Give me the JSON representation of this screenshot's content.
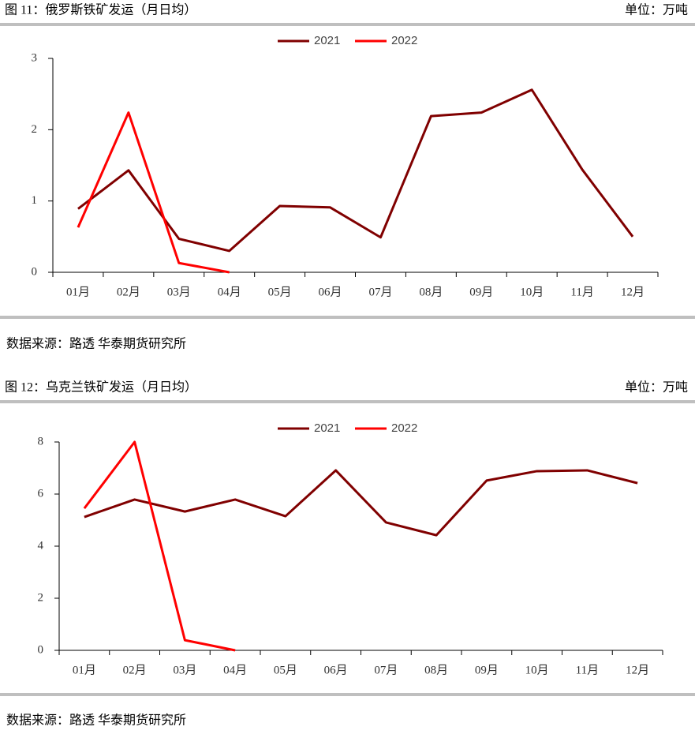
{
  "chart_data": [
    {
      "type": "line",
      "title": "图 11：俄罗斯铁矿发运（月日均）",
      "unit": "单位：万吨",
      "source": "数据来源：路透 华泰期货研究所",
      "categories": [
        "01月",
        "02月",
        "03月",
        "04月",
        "05月",
        "06月",
        "07月",
        "08月",
        "09月",
        "10月",
        "11月",
        "12月"
      ],
      "series": [
        {
          "name": "2021",
          "color": "#800000",
          "values": [
            0.89,
            1.43,
            0.47,
            0.3,
            0.93,
            0.91,
            0.49,
            2.19,
            2.24,
            2.56,
            1.44,
            0.5
          ]
        },
        {
          "name": "2022",
          "color": "#ff0000",
          "values": [
            0.63,
            2.24,
            0.13,
            0,
            null,
            null,
            null,
            null,
            null,
            null,
            null,
            null
          ]
        }
      ],
      "ylim": [
        0,
        3
      ],
      "yticks": [
        0,
        1,
        2,
        3
      ],
      "legend": "top"
    },
    {
      "type": "line",
      "title": "图 12：乌克兰铁矿发运（月日均）",
      "unit": "单位：万吨",
      "source": "数据来源：路透 华泰期货研究所",
      "categories": [
        "01月",
        "02月",
        "03月",
        "04月",
        "05月",
        "06月",
        "07月",
        "08月",
        "09月",
        "10月",
        "11月",
        "12月"
      ],
      "series": [
        {
          "name": "2021",
          "color": "#800000",
          "values": [
            5.12,
            5.79,
            5.33,
            5.79,
            5.15,
            6.91,
            4.91,
            4.42,
            6.52,
            6.88,
            6.91,
            6.42
          ]
        },
        {
          "name": "2022",
          "color": "#ff0000",
          "values": [
            5.45,
            8.0,
            0.39,
            0,
            null,
            null,
            null,
            null,
            null,
            null,
            null,
            null
          ]
        }
      ],
      "ylim": [
        0,
        8
      ],
      "yticks": [
        0,
        2,
        4,
        6,
        8
      ],
      "legend": "top"
    }
  ]
}
